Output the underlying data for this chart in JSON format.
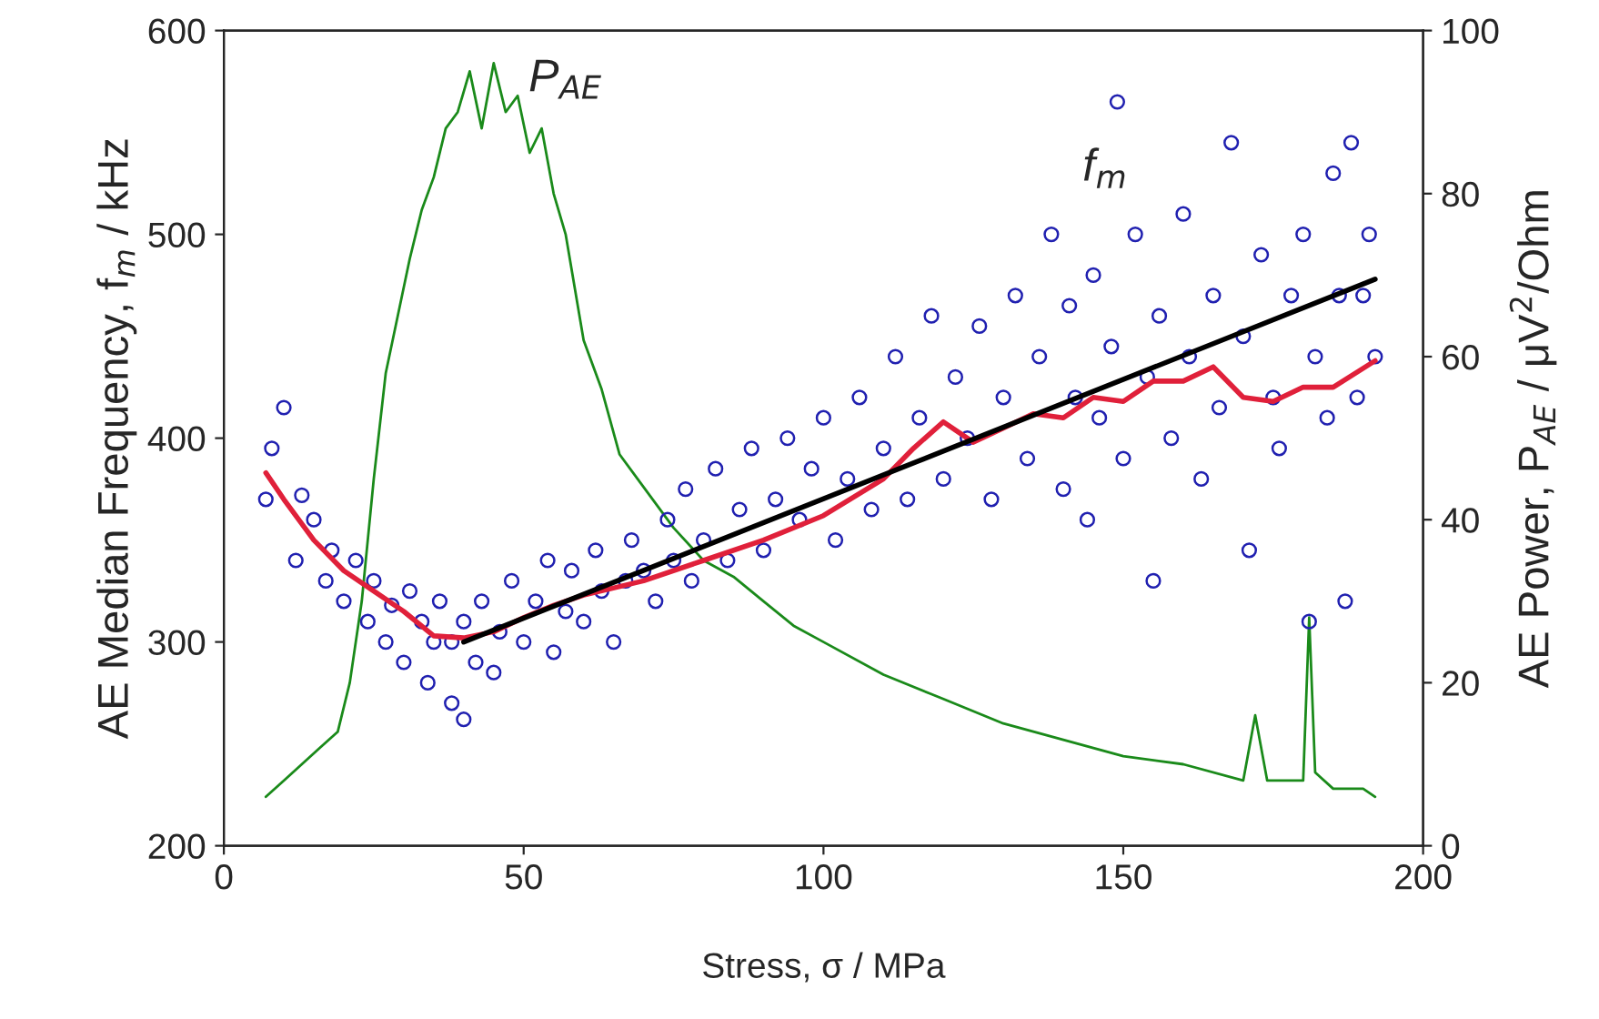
{
  "chart_data": {
    "type": "scatter",
    "xlabel": "Stress, σ / MPa",
    "ylabel": "AE Median Frequency, f$_{m}$ / kHz",
    "y2label": "AE Power, P$_{AE}$ / μV$^{2}$/Ohm",
    "xlim": [
      0,
      200
    ],
    "xticks": [
      0,
      50,
      100,
      150,
      200
    ],
    "ylim": [
      200,
      600
    ],
    "yticks": [
      200,
      300,
      400,
      500,
      600
    ],
    "y2lim": [
      0,
      100
    ],
    "y2ticks": [
      0,
      20,
      40,
      60,
      80,
      100
    ],
    "grid": false,
    "legend": false,
    "annotations": [
      "P$_{AE}$",
      "f$_{m}$"
    ],
    "series": [
      {
        "marker": "circle",
        "color": "#2020b0",
        "x": [
          7,
          8,
          10,
          12,
          13,
          15,
          17,
          18,
          20,
          22,
          24,
          25,
          27,
          28,
          30,
          31,
          33,
          34,
          35,
          36,
          38,
          38,
          40,
          40,
          42,
          43,
          45,
          46,
          48,
          50,
          52,
          54,
          55,
          57,
          58,
          60,
          62,
          63,
          65,
          67,
          68,
          70,
          72,
          74,
          75,
          77,
          78,
          80,
          82,
          84,
          86,
          88,
          90,
          92,
          94,
          96,
          98,
          100,
          102,
          104,
          106,
          108,
          110,
          112,
          114,
          116,
          118,
          120,
          122,
          124,
          126,
          128,
          130,
          132,
          134,
          136,
          138,
          140,
          141,
          142,
          144,
          145,
          146,
          148,
          149,
          150,
          152,
          154,
          155,
          156,
          158,
          160,
          161,
          163,
          165,
          166,
          168,
          170,
          171,
          173,
          175,
          176,
          178,
          180,
          181,
          182,
          184,
          185,
          186,
          187,
          188,
          189,
          190,
          191,
          192
        ],
        "values": [
          370,
          395,
          415,
          340,
          372,
          360,
          330,
          345,
          320,
          340,
          310,
          330,
          300,
          318,
          290,
          325,
          310,
          280,
          300,
          320,
          270,
          300,
          262,
          310,
          290,
          320,
          285,
          305,
          330,
          300,
          320,
          340,
          295,
          315,
          335,
          310,
          345,
          325,
          300,
          330,
          350,
          335,
          320,
          360,
          340,
          375,
          330,
          350,
          385,
          340,
          365,
          395,
          345,
          370,
          400,
          360,
          385,
          410,
          350,
          380,
          420,
          365,
          395,
          440,
          370,
          410,
          460,
          380,
          430,
          400,
          455,
          370,
          420,
          470,
          390,
          440,
          500,
          375,
          465,
          420,
          360,
          480,
          410,
          445,
          565,
          390,
          500,
          430,
          330,
          460,
          400,
          510,
          440,
          380,
          470,
          415,
          545,
          450,
          345,
          490,
          420,
          395,
          470,
          500,
          310,
          440,
          410,
          530,
          470,
          320,
          545,
          420,
          470,
          500,
          440
        ]
      },
      {
        "type": "line",
        "axis": "y2",
        "color": "#1a8a1a",
        "x": [
          7,
          10,
          13,
          16,
          19,
          21,
          23,
          25,
          27,
          29,
          31,
          33,
          35,
          37,
          39,
          41,
          43,
          45,
          47,
          49,
          51,
          53,
          55,
          57,
          60,
          63,
          66,
          70,
          75,
          80,
          85,
          90,
          95,
          100,
          110,
          120,
          130,
          140,
          150,
          160,
          170,
          172,
          174,
          180,
          181,
          182,
          185,
          190,
          192
        ],
        "values": [
          6,
          8,
          10,
          12,
          14,
          20,
          30,
          45,
          58,
          65,
          72,
          78,
          82,
          88,
          90,
          95,
          88,
          96,
          90,
          92,
          85,
          88,
          80,
          75,
          62,
          56,
          48,
          44,
          39,
          35,
          33,
          30,
          27,
          25,
          21,
          18,
          15,
          13,
          11,
          10,
          8,
          16,
          8,
          8,
          28,
          9,
          7,
          7,
          6
        ]
      },
      {
        "type": "line",
        "color": "#e0203a",
        "x": [
          7,
          10,
          15,
          20,
          25,
          30,
          35,
          40,
          45,
          50,
          55,
          60,
          70,
          80,
          90,
          100,
          110,
          115,
          120,
          125,
          130,
          135,
          140,
          145,
          150,
          155,
          160,
          165,
          170,
          175,
          180,
          185,
          192
        ],
        "values": [
          383,
          370,
          350,
          335,
          325,
          315,
          303,
          302,
          305,
          312,
          318,
          323,
          330,
          340,
          350,
          362,
          380,
          395,
          408,
          398,
          405,
          412,
          410,
          420,
          418,
          428,
          428,
          435,
          420,
          418,
          425,
          425,
          438
        ]
      },
      {
        "type": "line",
        "color": "#000000",
        "x": [
          40,
          192
        ],
        "values": [
          300,
          478
        ]
      }
    ]
  }
}
